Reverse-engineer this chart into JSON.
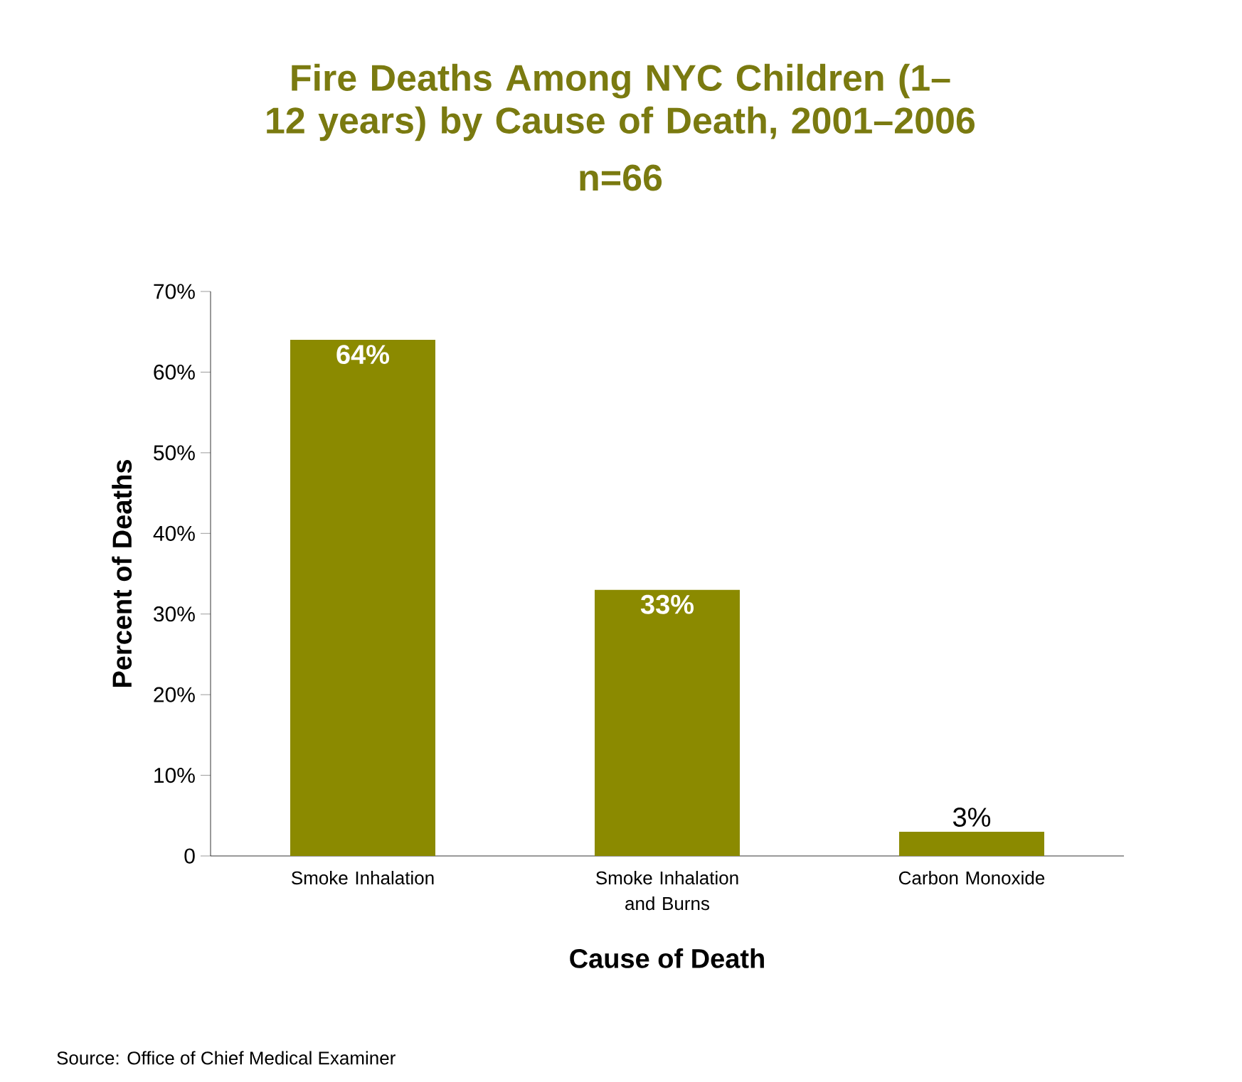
{
  "chart_data": {
    "type": "bar",
    "title": "Fire Deaths Among NYC Children (1–12 years) by Cause of Death, 2001–2006",
    "subtitle": "n=66",
    "categories": [
      "Smoke Inhalation",
      "Smoke Inhalation and Burns",
      "Carbon Monoxide"
    ],
    "values": [
      64,
      33,
      3
    ],
    "value_labels": [
      "64%",
      "33%",
      "3%"
    ],
    "color": "#8b8a00",
    "xlabel": "Cause of Death",
    "ylabel": "Percent of Deaths",
    "ylim": [
      0,
      70
    ],
    "yticks": [
      0,
      {
        "value": 10,
        "label": "10%"
      },
      {
        "value": 20,
        "label": "20%"
      },
      {
        "value": 30,
        "label": "30%"
      },
      {
        "value": 40,
        "label": "40%"
      },
      {
        "value": 50,
        "label": "50%"
      },
      {
        "value": 60,
        "label": "60%"
      },
      {
        "value": 70,
        "label": "70%"
      }
    ],
    "grid": false,
    "annotations": [
      "Source: Office of Chief Medical Examiner"
    ]
  }
}
